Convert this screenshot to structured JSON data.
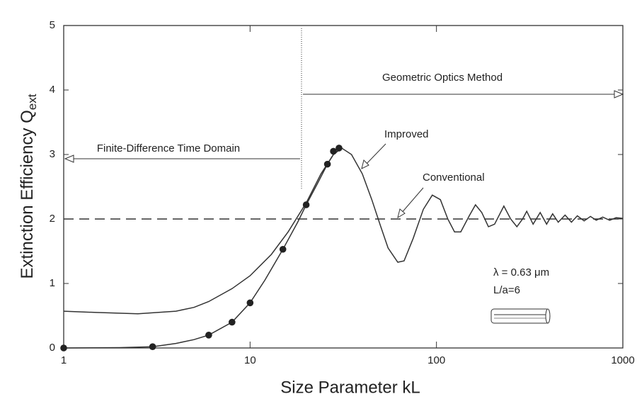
{
  "chart_data": {
    "type": "line",
    "xlabel": "Size Parameter kL",
    "ylabel": "Extinction Efficiency Q",
    "ylabel_sub": "ext",
    "log_x": true,
    "xlim": [
      1,
      1000
    ],
    "ylim": [
      0,
      5
    ],
    "xticks": [
      1,
      10,
      100,
      1000
    ],
    "yticks": [
      0,
      1,
      2,
      3,
      4,
      5
    ],
    "series": [
      {
        "name": "Improved",
        "color": "#333333",
        "x": [
          1,
          1.5,
          2.5,
          4,
          5,
          6,
          8,
          10,
          13,
          16,
          20,
          24,
          28,
          31,
          35,
          40,
          45,
          50,
          55,
          62,
          67,
          75,
          85,
          95,
          105,
          115,
          125,
          135,
          150,
          162,
          175,
          190,
          205,
          230,
          250,
          270,
          290,
          305,
          330,
          360,
          390,
          420,
          450,
          490,
          530,
          570,
          620,
          670,
          720,
          780,
          850,
          920,
          1000
        ],
        "values": [
          0.57,
          0.55,
          0.53,
          0.57,
          0.63,
          0.72,
          0.92,
          1.12,
          1.45,
          1.8,
          2.25,
          2.7,
          3.0,
          3.1,
          3.0,
          2.7,
          2.3,
          1.9,
          1.55,
          1.33,
          1.35,
          1.7,
          2.15,
          2.37,
          2.3,
          2.0,
          1.8,
          1.8,
          2.05,
          2.22,
          2.1,
          1.88,
          1.92,
          2.2,
          2.0,
          1.88,
          2.0,
          2.12,
          1.92,
          2.1,
          1.92,
          2.08,
          1.95,
          2.06,
          1.95,
          2.05,
          1.97,
          2.04,
          1.98,
          2.03,
          1.98,
          2.02,
          2.01
        ]
      },
      {
        "name": "Conventional",
        "color": "#333333",
        "dashed": true,
        "x": [
          1,
          1000
        ],
        "values": [
          2,
          2
        ]
      },
      {
        "color": "#333333",
        "x": [
          1,
          2,
          3,
          4,
          5,
          6,
          8,
          10,
          12,
          15,
          18,
          20,
          23,
          26,
          28,
          31
        ],
        "values": [
          0,
          0.005,
          0.02,
          0.07,
          0.13,
          0.2,
          0.4,
          0.7,
          1.05,
          1.53,
          1.95,
          2.22,
          2.55,
          2.85,
          3.0,
          3.1
        ]
      },
      {
        "type": "scatter",
        "color": "#222222",
        "x": [
          1,
          3,
          6,
          8,
          10,
          15,
          20,
          26,
          28,
          30
        ],
        "values": [
          0,
          0.02,
          0.2,
          0.4,
          0.7,
          1.53,
          2.22,
          2.85,
          3.05,
          3.1
        ]
      }
    ],
    "annotations": [
      "Geometric Optics Method",
      "Finite-Difference Time Domain",
      "Improved",
      "Conventional",
      "λ = 0.63 μm",
      "L/a=6"
    ]
  }
}
